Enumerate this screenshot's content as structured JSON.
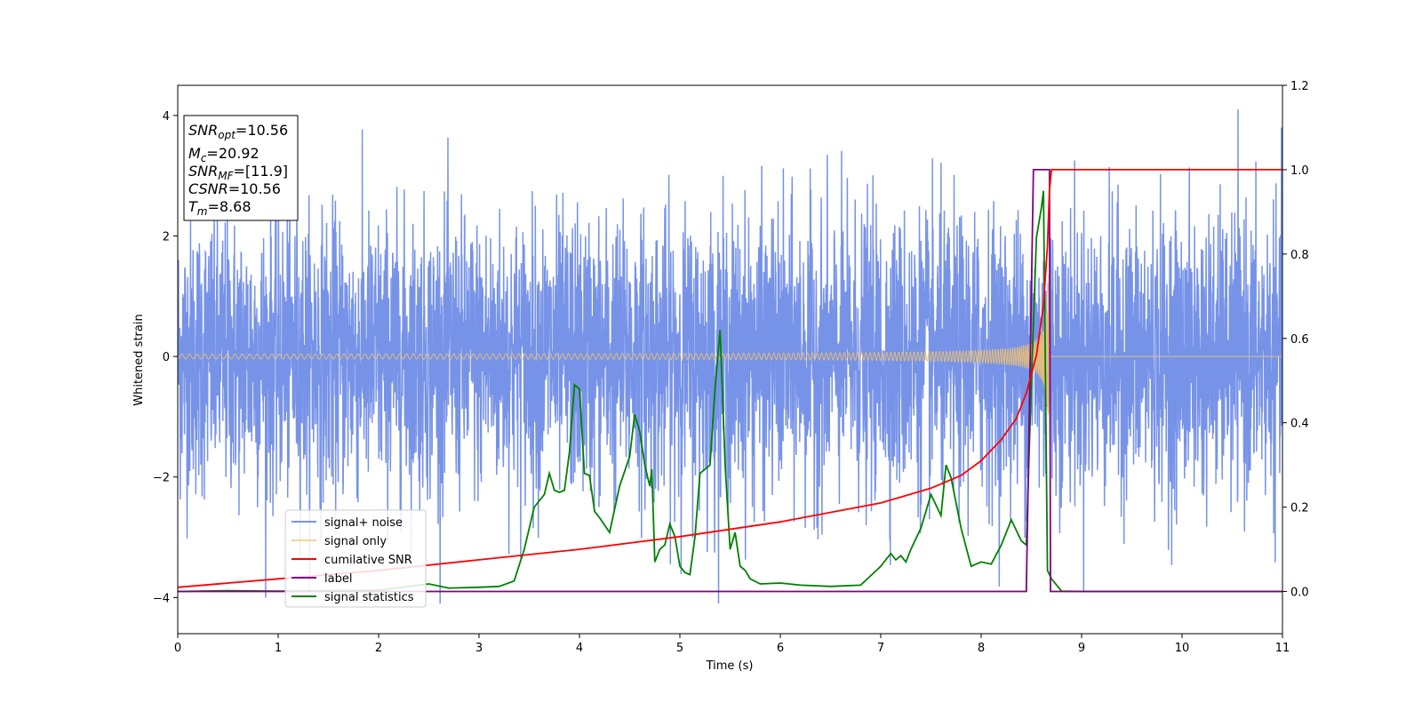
{
  "chart_data": {
    "type": "line",
    "xlabel": "Time (s)",
    "ylabel": "Whitened strain",
    "xlim": [
      0,
      11
    ],
    "ylim_left": [
      -4.6,
      4.5
    ],
    "ylim_right": [
      -0.1,
      1.2
    ],
    "x_ticks": [
      "0",
      "1",
      "2",
      "3",
      "4",
      "5",
      "6",
      "7",
      "8",
      "9",
      "10",
      "11"
    ],
    "y_ticks_left": [
      "−4",
      "−2",
      "0",
      "2",
      "4"
    ],
    "y_ticks_right": [
      "0.0",
      "0.2",
      "0.4",
      "0.6",
      "0.8",
      "1.0",
      "1.2"
    ],
    "legend_position": "lower-left",
    "annotation": {
      "snr_opt": {
        "symbol": "SNR",
        "sub": "opt",
        "value": "=10.56"
      },
      "mc": {
        "symbol": "M",
        "sub": "c",
        "value": "=20.92"
      },
      "snr_mf": {
        "symbol": "SNR",
        "sub": "MF",
        "value": "=[11.9]"
      },
      "csnr": {
        "symbol": "CSNR",
        "sub": "",
        "value": "=10.56"
      },
      "tm": {
        "symbol": "T",
        "sub": "m",
        "value": "=8.68"
      }
    },
    "series": [
      {
        "name": "signal+ noise",
        "color": "#7793e8",
        "axis": "left",
        "description_stats": {
          "noise_sigma": 1.0,
          "typical_peak": 3.3
        }
      },
      {
        "name": "signal only",
        "color": "#f5c36b",
        "axis": "left",
        "chirp": {
          "start": 0,
          "merger": 8.68,
          "max_amplitude": 1.4
        }
      },
      {
        "name": "cumilative SNR",
        "color": "#ff0000",
        "axis": "right",
        "x": [
          0,
          1,
          2,
          3,
          4,
          5,
          6,
          7,
          7.5,
          7.8,
          8.0,
          8.2,
          8.35,
          8.45,
          8.55,
          8.62,
          8.66,
          8.68,
          8.7,
          11
        ],
        "y": [
          0.01,
          0.03,
          0.05,
          0.075,
          0.1,
          0.13,
          0.165,
          0.21,
          0.245,
          0.275,
          0.31,
          0.36,
          0.41,
          0.47,
          0.56,
          0.68,
          0.82,
          0.95,
          1.0,
          1.0
        ]
      },
      {
        "name": "label",
        "color": "#800080",
        "axis": "right",
        "x": [
          0,
          8.45,
          8.52,
          8.68,
          8.69,
          11
        ],
        "y": [
          0,
          0,
          1,
          1,
          0,
          0
        ]
      },
      {
        "name": "signal statistics",
        "color": "#008000",
        "axis": "right",
        "x": [
          0,
          0.5,
          1,
          1.5,
          2,
          2.3,
          2.5,
          2.7,
          3,
          3.2,
          3.35,
          3.45,
          3.55,
          3.65,
          3.7,
          3.75,
          3.8,
          3.85,
          3.9,
          3.95,
          4.0,
          4.05,
          4.1,
          4.15,
          4.2,
          4.3,
          4.4,
          4.5,
          4.55,
          4.6,
          4.65,
          4.7,
          4.72,
          4.75,
          4.8,
          4.85,
          4.9,
          4.95,
          5.0,
          5.05,
          5.1,
          5.15,
          5.2,
          5.3,
          5.35,
          5.4,
          5.45,
          5.5,
          5.55,
          5.6,
          5.65,
          5.7,
          5.8,
          6.0,
          6.2,
          6.5,
          6.8,
          7.0,
          7.1,
          7.15,
          7.2,
          7.25,
          7.3,
          7.4,
          7.5,
          7.6,
          7.65,
          7.7,
          7.8,
          7.9,
          8.0,
          8.1,
          8.2,
          8.3,
          8.4,
          8.45,
          8.5,
          8.55,
          8.6,
          8.62,
          8.66,
          8.7,
          8.8,
          9,
          11
        ],
        "y": [
          0,
          0.002,
          0.001,
          0.002,
          0.003,
          0.012,
          0.018,
          0.008,
          0.01,
          0.012,
          0.025,
          0.1,
          0.2,
          0.23,
          0.28,
          0.24,
          0.235,
          0.24,
          0.33,
          0.49,
          0.48,
          0.28,
          0.275,
          0.19,
          0.175,
          0.14,
          0.25,
          0.32,
          0.42,
          0.38,
          0.3,
          0.25,
          0.29,
          0.07,
          0.1,
          0.11,
          0.16,
          0.13,
          0.06,
          0.045,
          0.04,
          0.13,
          0.28,
          0.3,
          0.48,
          0.62,
          0.3,
          0.1,
          0.14,
          0.06,
          0.05,
          0.03,
          0.018,
          0.02,
          0.015,
          0.012,
          0.015,
          0.06,
          0.09,
          0.075,
          0.085,
          0.07,
          0.1,
          0.15,
          0.23,
          0.18,
          0.3,
          0.27,
          0.15,
          0.06,
          0.07,
          0.065,
          0.11,
          0.17,
          0.12,
          0.11,
          0.5,
          0.84,
          0.91,
          0.95,
          0.05,
          0.03,
          0.001,
          0.0,
          0.0
        ]
      }
    ]
  }
}
